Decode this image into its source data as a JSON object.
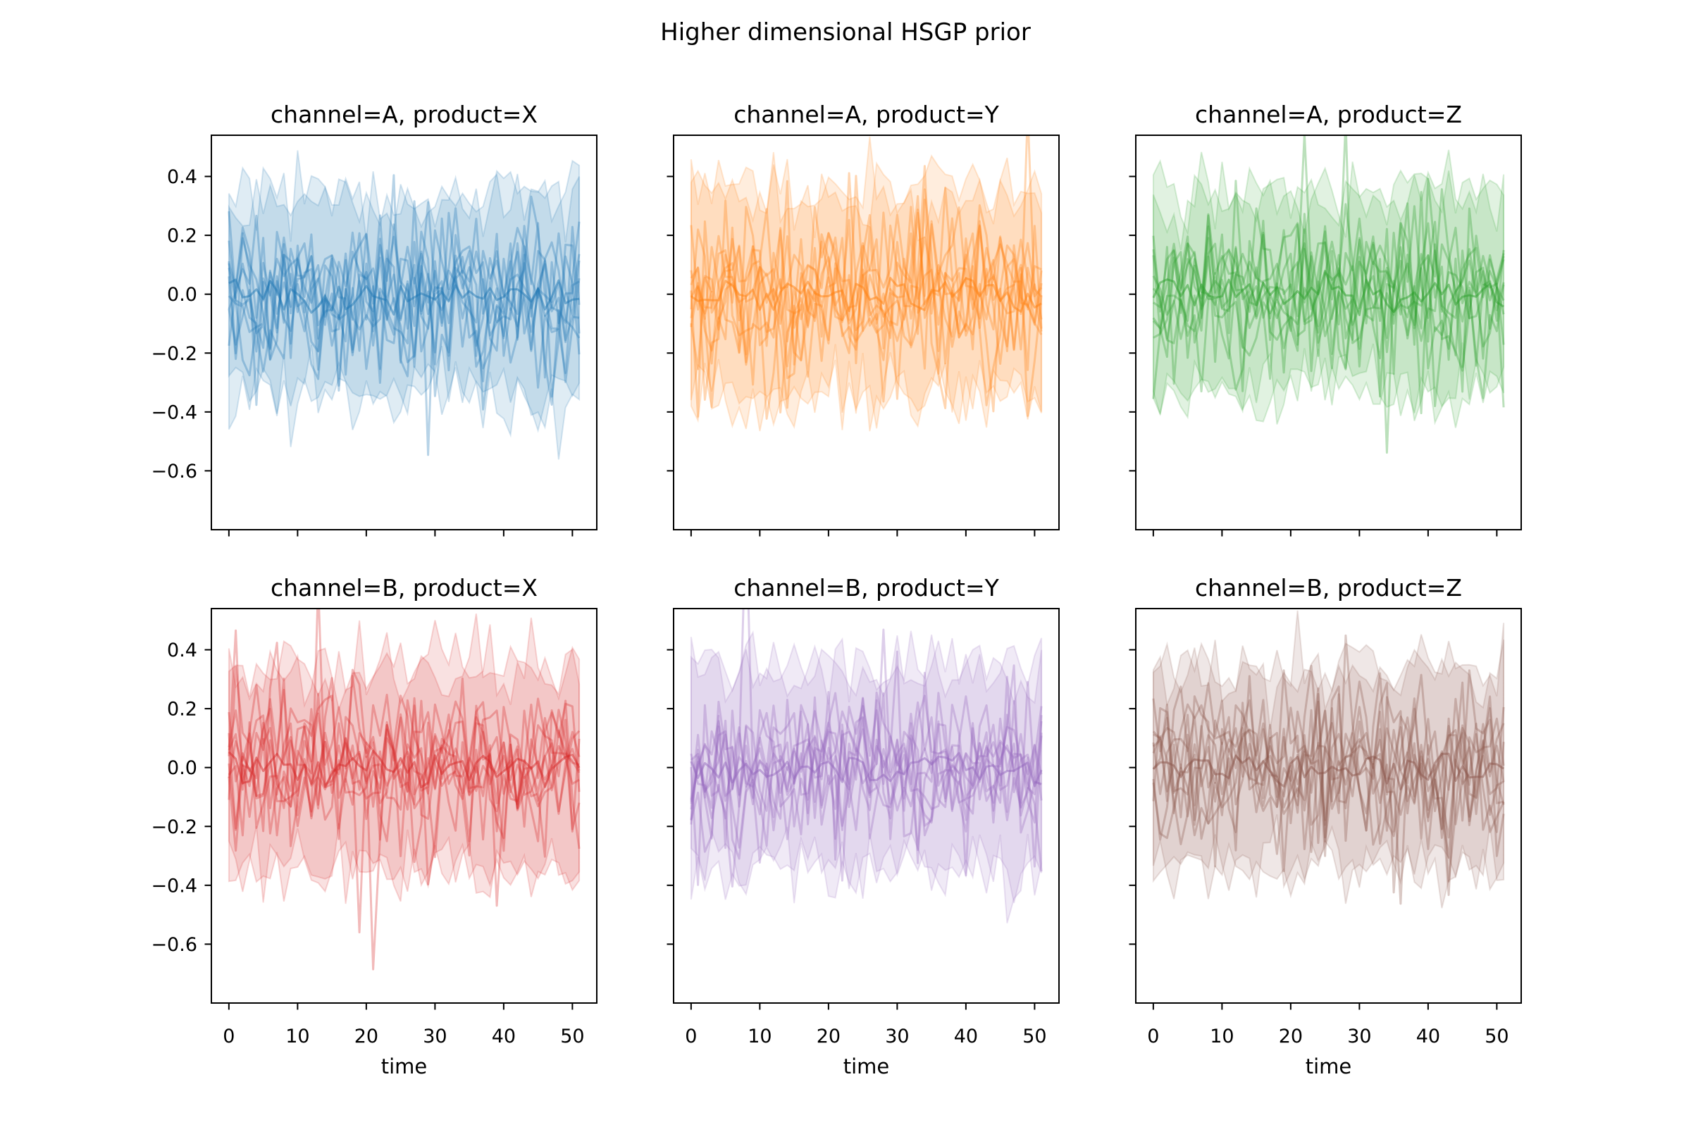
{
  "figure": {
    "suptitle": "Higher dimensional HSGP prior",
    "background_color": "#ffffff",
    "text_color": "#000000"
  },
  "chart_data": {
    "type": "line",
    "title": "Higher dimensional HSGP prior",
    "xlabel": "time",
    "ylabel": "",
    "grid": false,
    "legend": false,
    "rows": 2,
    "cols": 3,
    "xlim": [
      -2.55,
      53.55
    ],
    "ylim": [
      -0.8,
      0.54
    ],
    "x_range": [
      0,
      51
    ],
    "n_points": 52,
    "n_sample_lines": 10,
    "x_ticks": [
      0,
      10,
      20,
      30,
      40,
      50
    ],
    "x_tick_labels": [
      "0",
      "10",
      "20",
      "30",
      "40",
      "50"
    ],
    "y_ticks": [
      0.4,
      0.2,
      0.0,
      -0.2,
      -0.4,
      -0.6
    ],
    "y_tick_labels": [
      "0.4",
      "0.2",
      "0.0",
      "−0.2",
      "−0.4",
      "−0.6"
    ],
    "band": {
      "n_bands": 2,
      "center": 0.33,
      "sd": 0.065,
      "fill_alpha": 0.14,
      "edge_alpha": 0.18
    },
    "lines": {
      "sd": 0.13,
      "alpha": 0.32,
      "heavy_tail_p": 0.025,
      "center_line_sd": 0.03,
      "center_line_alpha": 0.5
    },
    "panels": [
      {
        "title": "channel=A, product=X",
        "channel": "A",
        "product": "X",
        "color": "#1f77b4",
        "seed": 101,
        "show_x_labels": false,
        "show_y_labels": true
      },
      {
        "title": "channel=A, product=Y",
        "channel": "A",
        "product": "Y",
        "color": "#ff7f0e",
        "seed": 202,
        "show_x_labels": false,
        "show_y_labels": false
      },
      {
        "title": "channel=A, product=Z",
        "channel": "A",
        "product": "Z",
        "color": "#2ca02c",
        "seed": 303,
        "show_x_labels": false,
        "show_y_labels": false
      },
      {
        "title": "channel=B, product=X",
        "channel": "B",
        "product": "X",
        "color": "#d62728",
        "seed": 404,
        "show_x_labels": true,
        "show_y_labels": true
      },
      {
        "title": "channel=B, product=Y",
        "channel": "B",
        "product": "Y",
        "color": "#9467bd",
        "seed": 505,
        "show_x_labels": true,
        "show_y_labels": false
      },
      {
        "title": "channel=B, product=Z",
        "channel": "B",
        "product": "Z",
        "color": "#8c564b",
        "seed": 606,
        "show_x_labels": true,
        "show_y_labels": false
      }
    ]
  }
}
